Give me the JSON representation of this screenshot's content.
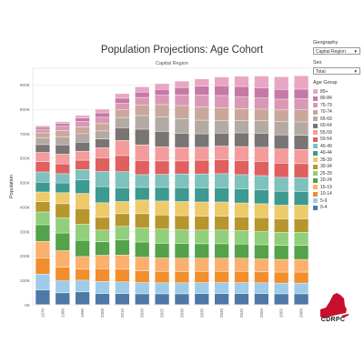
{
  "title": "Population Projections: Age Cohort",
  "filters": {
    "geography_label": "Geography",
    "geography_value": "Capital Region",
    "sex_label": "Sex",
    "sex_value": "Total"
  },
  "legend_title": "Age Group",
  "logo_text": "CDRPC",
  "colors": [
    "#e8a6c3",
    "#c679a6",
    "#d999b6",
    "#c9a89b",
    "#b4aaa4",
    "#7a7575",
    "#f49c9c",
    "#e05f5f",
    "#7ec1bd",
    "#3d9a93",
    "#eecb6a",
    "#b8962e",
    "#91cf7c",
    "#54a24a",
    "#fbb06d",
    "#f28e2b",
    "#a0cbe8",
    "#4e79a7"
  ],
  "chart_data": {
    "type": "bar",
    "stacked": true,
    "subtitle": "Capital Region",
    "ylabel": "Population",
    "xlabel": "",
    "ylim": [
      0,
      950000
    ],
    "yticks": [
      0,
      100000,
      200000,
      300000,
      400000,
      500000,
      600000,
      700000,
      800000,
      900000
    ],
    "ytick_labels": [
      "0K",
      "100K",
      "200K",
      "300K",
      "400K",
      "500K",
      "600K",
      "700K",
      "800K",
      "900K"
    ],
    "grid": true,
    "legend_position": "right",
    "categories": [
      "1970",
      "1980",
      "1990",
      "2000",
      "2010",
      "2020",
      "2025",
      "2030",
      "2035",
      "2040",
      "2045",
      "2050",
      "2055",
      "2060"
    ],
    "series": [
      {
        "name": "0-4",
        "values": [
          60000,
          48000,
          52000,
          45000,
          45000,
          44000,
          44000,
          44000,
          45000,
          45000,
          45000,
          45000,
          44000,
          44000
        ]
      },
      {
        "name": "5-9",
        "values": [
          65000,
          50000,
          48000,
          50000,
          48000,
          46000,
          45000,
          45000,
          45000,
          45000,
          45000,
          44000,
          44000,
          44000
        ]
      },
      {
        "name": "10-14",
        "values": [
          66000,
          55000,
          45000,
          52000,
          52000,
          48000,
          47000,
          46000,
          46000,
          46000,
          46000,
          45000,
          45000,
          45000
        ]
      },
      {
        "name": "15-19",
        "values": [
          68000,
          68000,
          52000,
          55000,
          58000,
          56000,
          55000,
          55000,
          54000,
          54000,
          54000,
          53000,
          52000,
          52000
        ]
      },
      {
        "name": "20-24",
        "values": [
          68000,
          72000,
          66000,
          55000,
          62000,
          62000,
          60000,
          60000,
          59000,
          59000,
          58000,
          58000,
          57000,
          57000
        ]
      },
      {
        "name": "25-29",
        "values": [
          52000,
          62000,
          66000,
          48000,
          55000,
          58000,
          58000,
          56000,
          56000,
          56000,
          55000,
          55000,
          54000,
          54000
        ]
      },
      {
        "name": "30-34",
        "values": [
          42000,
          58000,
          64000,
          52000,
          52000,
          58000,
          58000,
          58000,
          57000,
          57000,
          56000,
          56000,
          55000,
          55000
        ]
      },
      {
        "name": "35-39",
        "values": [
          40000,
          45000,
          62000,
          60000,
          50000,
          56000,
          57000,
          58000,
          58000,
          58000,
          57000,
          57000,
          56000,
          56000
        ]
      },
      {
        "name": "40-44",
        "values": [
          40000,
          40000,
          56000,
          66000,
          56000,
          52000,
          56000,
          57000,
          58000,
          58000,
          58000,
          57000,
          57000,
          56000
        ]
      },
      {
        "name": "45-49",
        "values": [
          42000,
          38000,
          42000,
          62000,
          66000,
          52000,
          53000,
          56000,
          57000,
          58000,
          58000,
          58000,
          57000,
          57000
        ]
      },
      {
        "name": "50-54",
        "values": [
          42000,
          40000,
          38000,
          55000,
          66000,
          58000,
          55000,
          53000,
          56000,
          57000,
          58000,
          58000,
          58000,
          57000
        ]
      },
      {
        "name": "55-59",
        "values": [
          38000,
          40000,
          37000,
          42000,
          62000,
          64000,
          58000,
          55000,
          53000,
          56000,
          57000,
          58000,
          58000,
          58000
        ]
      },
      {
        "name": "60-64",
        "values": [
          32000,
          38000,
          37000,
          36000,
          52000,
          64000,
          63000,
          58000,
          55000,
          53000,
          56000,
          57000,
          58000,
          58000
        ]
      },
      {
        "name": "65-69",
        "values": [
          28000,
          32000,
          35000,
          33000,
          42000,
          56000,
          60000,
          60000,
          56000,
          52000,
          50000,
          52000,
          54000,
          55000
        ]
      },
      {
        "name": "70-74",
        "values": [
          20000,
          26000,
          28000,
          30000,
          32000,
          44000,
          50000,
          54000,
          55000,
          52000,
          49000,
          47000,
          48000,
          50000
        ]
      },
      {
        "name": "75-79",
        "values": [
          15000,
          18000,
          22000,
          26000,
          26000,
          30000,
          38000,
          44000,
          48000,
          50000,
          48000,
          46000,
          44000,
          45000
        ]
      },
      {
        "name": "80-84",
        "values": [
          9000,
          11000,
          14000,
          18000,
          21000,
          22000,
          24000,
          30000,
          36000,
          40000,
          43000,
          42000,
          40000,
          39000
        ]
      },
      {
        "name": "85+",
        "values": [
          6000,
          8000,
          11000,
          15000,
          19000,
          22000,
          24000,
          26000,
          30000,
          36000,
          42000,
          48000,
          52000,
          55000
        ]
      }
    ]
  }
}
